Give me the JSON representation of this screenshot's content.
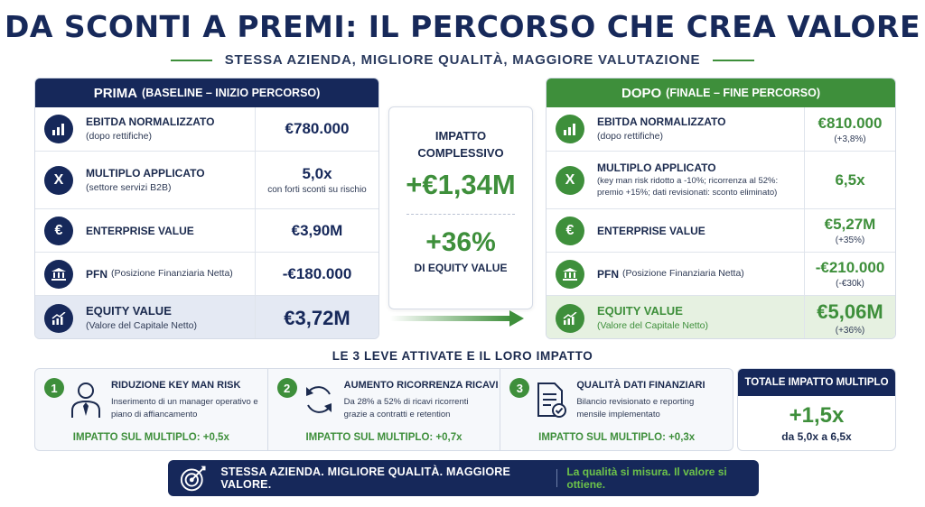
{
  "title": "DA SCONTI A PREMI: IL PERCORSO CHE CREA VALORE",
  "subtitle": "STESSA AZIENDA, MIGLIORE QUALITÀ, MAGGIORE VALUTAZIONE",
  "colors": {
    "navy": "#16285a",
    "green": "#3e8f3b",
    "light_green": "#6cc24a"
  },
  "before": {
    "header_main": "PRIMA",
    "header_sub": "(BASELINE – INIZIO PERCORSO)",
    "rows": [
      {
        "icon": "bar-chart-icon",
        "label": "EBITDA NORMALIZZATO",
        "sub": "(dopo rettifiche)",
        "value": "€780.000",
        "value_sub": ""
      },
      {
        "icon": "multiply-icon",
        "label": "MULTIPLO APPLICATO",
        "sub": "(settore servizi B2B)",
        "value": "5,0x",
        "value_sub": "con forti sconti su rischio"
      },
      {
        "icon": "euro-icon",
        "label": "ENTERPRISE VALUE",
        "sub": "",
        "value": "€3,90M",
        "value_sub": ""
      },
      {
        "icon": "bank-icon",
        "label": "PFN",
        "sub": "(Posizione Finanziaria Netta)",
        "value": "-€180.000",
        "value_sub": ""
      },
      {
        "icon": "trend-up-icon",
        "label": "EQUITY VALUE",
        "sub": "(Valore del Capitale Netto)",
        "value": "€3,72M",
        "value_sub": ""
      }
    ]
  },
  "after": {
    "header_main": "DOPO",
    "header_sub": "(FINALE – FINE PERCORSO)",
    "rows": [
      {
        "icon": "bar-chart-icon",
        "label": "EBITDA NORMALIZZATO",
        "sub": "(dopo rettifiche)",
        "value": "€810.000",
        "value_sub": "(+3,8%)"
      },
      {
        "icon": "multiply-icon",
        "label": "MULTIPLO APPLICATO",
        "sub": "(key man risk ridotto a -10%; ricorrenza al 52%: premio +15%; dati revisionati: sconto eliminato)",
        "value": "6,5x",
        "value_sub": ""
      },
      {
        "icon": "euro-icon",
        "label": "ENTERPRISE VALUE",
        "sub": "",
        "value": "€5,27M",
        "value_sub": "(+35%)"
      },
      {
        "icon": "bank-icon",
        "label": "PFN",
        "sub": "(Posizione Finanziaria Netta)",
        "value": "-€210.000",
        "value_sub": "(-€30k)"
      },
      {
        "icon": "trend-up-icon",
        "label": "EQUITY VALUE",
        "sub": "(Valore del Capitale Netto)",
        "value": "€5,06M",
        "value_sub": "(+36%)"
      }
    ]
  },
  "impact": {
    "title": "IMPATTO COMPLESSIVO",
    "value": "+€1,34M",
    "percent": "+36%",
    "percent_label": "DI EQUITY VALUE"
  },
  "levers_title": "LE 3 LEVE ATTIVATE E IL LORO IMPATTO",
  "levers": [
    {
      "num": "1",
      "icon": "manager-icon",
      "title": "RIDUZIONE KEY MAN RISK",
      "desc": "Inserimento di un manager operativo e piano di affiancamento",
      "impact": "IMPATTO SUL MULTIPLO: +0,5x"
    },
    {
      "num": "2",
      "icon": "refresh-icon",
      "title": "AUMENTO RICORRENZA RICAVI",
      "desc": "Da 28% a 52% di ricavi ricorrenti grazie a contratti e retention",
      "impact": "IMPATTO SUL MULTIPLO: +0,7x"
    },
    {
      "num": "3",
      "icon": "document-check-icon",
      "title": "QUALITÀ DATI FINANZIARI",
      "desc": "Bilancio revisionato e reporting mensile implementato",
      "impact": "IMPATTO SUL MULTIPLO: +0,3x"
    }
  ],
  "total": {
    "header": "TOTALE IMPATTO MULTIPLO",
    "value": "+1,5x",
    "sub": "da 5,0x a 6,5x"
  },
  "banner": {
    "icon": "target-icon",
    "main": "STESSA AZIENDA. MIGLIORE QUALITÀ. MAGGIORE VALORE.",
    "sub": "La qualità si misura. Il valore si ottiene."
  }
}
